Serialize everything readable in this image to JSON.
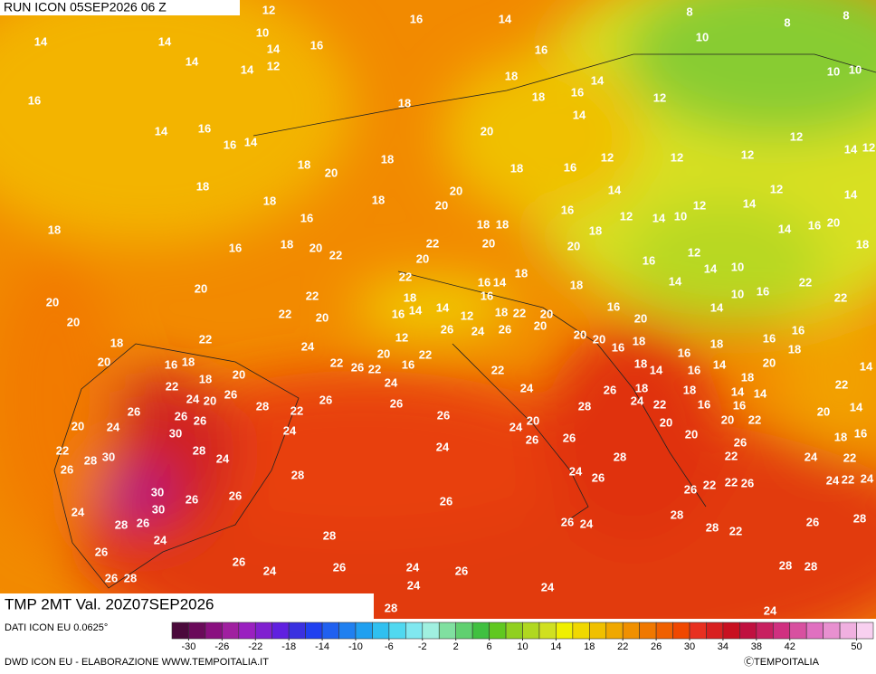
{
  "header": {
    "run": "RUN ICON 05SEP2026 06 Z"
  },
  "field": {
    "title": "TMP 2MT Val. 20Z07SEP2026"
  },
  "source": "DATI ICON EU 0.0625°",
  "credit": "DWD ICON EU - ELABORAZIONE WWW.TEMPOITALIA.IT",
  "copyright": "ⒸTEMPOITALIA",
  "map_labels": [
    12,
    16,
    14,
    8,
    8,
    8,
    14,
    14,
    10,
    14,
    16,
    10,
    14,
    14,
    12,
    16,
    10,
    10,
    16,
    18,
    18,
    18,
    14,
    16,
    12,
    14,
    16,
    16,
    14,
    20,
    14,
    12,
    14,
    12,
    18,
    20,
    18,
    18,
    16,
    12,
    12,
    12,
    18,
    18,
    18,
    20,
    20,
    16,
    14,
    12,
    14,
    12,
    14,
    18,
    16,
    18,
    18,
    18,
    12,
    14,
    10,
    14,
    16,
    20,
    16,
    18,
    20,
    22,
    22,
    20,
    20,
    20,
    12,
    18,
    16,
    14,
    10,
    18,
    22,
    14,
    16,
    18,
    14,
    22,
    20,
    22,
    18,
    16,
    10,
    16,
    22,
    20,
    22,
    20,
    16,
    14,
    14,
    12,
    18,
    22,
    20,
    16,
    14,
    20,
    20,
    20,
    16,
    18,
    22,
    24,
    12,
    26,
    24,
    26,
    20,
    20,
    16,
    18,
    16,
    18,
    16,
    18,
    20,
    16,
    18,
    22,
    26,
    22,
    20,
    16,
    22,
    22,
    18,
    14,
    16,
    14,
    20,
    14,
    18,
    20,
    24,
    18,
    18,
    22,
    24,
    20,
    26,
    28,
    26,
    26,
    24,
    26,
    24,
    22,
    18,
    14,
    14,
    22,
    14,
    26,
    26,
    26,
    22,
    28,
    16,
    16,
    20,
    20,
    24,
    24,
    26,
    24,
    20,
    20,
    20,
    22,
    18,
    16,
    30,
    28,
    24,
    28,
    30,
    22,
    26,
    24,
    26,
    26,
    28,
    20,
    26,
    22,
    24,
    22,
    24,
    26,
    28,
    22,
    24,
    22,
    24,
    30,
    26,
    26,
    26,
    22,
    26,
    26,
    30,
    24,
    28,
    26,
    26,
    24,
    28,
    28,
    22,
    26,
    28,
    24,
    28,
    26,
    26,
    24,
    26,
    24,
    26,
    28,
    28,
    26,
    28,
    24,
    24,
    28,
    24,
    28
  ],
  "colorbar": {
    "lim": [
      -32,
      52
    ],
    "ticks": [
      -30,
      -26,
      -22,
      -18,
      -14,
      -10,
      -6,
      -2,
      2,
      6,
      10,
      14,
      18,
      22,
      26,
      30,
      34,
      38,
      42,
      50
    ],
    "colors": [
      "#4b0a3c",
      "#6a0a5a",
      "#8a1080",
      "#a020a0",
      "#9a20c0",
      "#8020d0",
      "#6020e0",
      "#3a30e0",
      "#2040f0",
      "#2060f0",
      "#2080f0",
      "#20a0f0",
      "#30c0f0",
      "#50d8f0",
      "#80e8f0",
      "#a0f0e0",
      "#80e0a0",
      "#60d070",
      "#40c040",
      "#60c820",
      "#90d020",
      "#b0d820",
      "#d0e020",
      "#f0f000",
      "#f0d800",
      "#f0c000",
      "#f0a800",
      "#f09000",
      "#f07800",
      "#f06000",
      "#f04800",
      "#e83020",
      "#d82020",
      "#c81020",
      "#c01040",
      "#c82060",
      "#d03080",
      "#d850a0",
      "#e070c0",
      "#e890d0",
      "#f0b0e0",
      "#f8d0f0"
    ]
  }
}
